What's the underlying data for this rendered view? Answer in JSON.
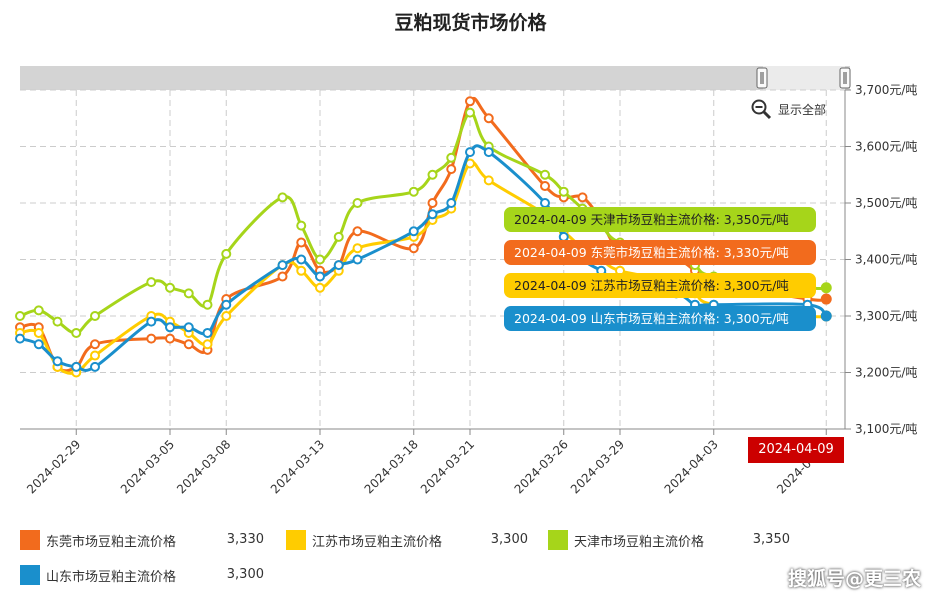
{
  "title": "豆粕现货市场价格",
  "show_all_label": "显示全部",
  "end_date_badge": "2024-04-09",
  "watermark": "搜狐号@更三农",
  "colors": {
    "dongguan": "#f26b1d",
    "jiangsu": "#ffcc00",
    "tianjin": "#a6d51a",
    "shandong": "#1a8fcc",
    "axis": "#888888",
    "grid": "#cccccc",
    "badge": "#cc0000"
  },
  "tooltips": [
    {
      "text": "2024-04-09 天津市场豆粕主流价格: 3,350元/吨",
      "color": "#a6d51a",
      "text_color": "#222222"
    },
    {
      "text": "2024-04-09 东莞市场豆粕主流价格: 3,330元/吨",
      "color": "#f26b1d",
      "text_color": "#ffffff"
    },
    {
      "text": "2024-04-09 江苏市场豆粕主流价格: 3,300元/吨",
      "color": "#ffcc00",
      "text_color": "#222222"
    },
    {
      "text": "2024-04-09 山东市场豆粕主流价格: 3,300元/吨",
      "color": "#1a8fcc",
      "text_color": "#ffffff"
    }
  ],
  "legend": [
    {
      "name": "东莞市场豆粕主流价格",
      "value": "3,330",
      "color": "#f26b1d"
    },
    {
      "name": "江苏市场豆粕主流价格",
      "value": "3,300",
      "color": "#ffcc00"
    },
    {
      "name": "天津市场豆粕主流价格",
      "value": "3,350",
      "color": "#a6d51a"
    },
    {
      "name": "山东市场豆粕主流价格",
      "value": "3,300",
      "color": "#1a8fcc"
    }
  ],
  "chart_data": {
    "type": "line",
    "title": "豆粕现货市场价格",
    "x_tick_labels": [
      "2024-02-29",
      "2024-03-05",
      "2024-03-08",
      "2024-03-13",
      "2024-03-18",
      "2024-03-21",
      "2024-03-26",
      "2024-03-29",
      "2024-04-03",
      "2024-04-09"
    ],
    "y_tick_labels": [
      "3,700元/吨",
      "3,600元/吨",
      "3,500元/吨",
      "3,400元/吨",
      "3,300元/吨",
      "3,200元/吨",
      "3,100元/吨"
    ],
    "ylim": [
      3100,
      3700
    ],
    "y_unit": "元/吨",
    "grid": true,
    "legend_position": "bottom",
    "x": [
      "2024-02-26",
      "2024-02-27",
      "2024-02-28",
      "2024-02-29",
      "2024-03-01",
      "2024-03-04",
      "2024-03-05",
      "2024-03-06",
      "2024-03-07",
      "2024-03-08",
      "2024-03-11",
      "2024-03-12",
      "2024-03-13",
      "2024-03-14",
      "2024-03-15",
      "2024-03-18",
      "2024-03-19",
      "2024-03-20",
      "2024-03-21",
      "2024-03-22",
      "2024-03-25",
      "2024-03-26",
      "2024-03-27",
      "2024-03-28",
      "2024-03-29",
      "2024-04-01",
      "2024-04-02",
      "2024-04-03",
      "2024-04-08",
      "2024-04-09"
    ],
    "series": [
      {
        "name": "东莞市场豆粕主流价格",
        "key": "dongguan",
        "values": [
          3280,
          3280,
          3210,
          3210,
          3250,
          3260,
          3260,
          3250,
          3240,
          3330,
          3370,
          3430,
          3380,
          3390,
          3450,
          3420,
          3500,
          3560,
          3680,
          3650,
          3530,
          3510,
          3510,
          3470,
          3420,
          3400,
          3380,
          3360,
          3330,
          3330
        ]
      },
      {
        "name": "江苏市场豆粕主流价格",
        "key": "jiangsu",
        "values": [
          3270,
          3270,
          3210,
          3200,
          3230,
          3300,
          3290,
          3270,
          3250,
          3300,
          3390,
          3380,
          3350,
          3380,
          3420,
          3440,
          3470,
          3490,
          3570,
          3540,
          3480,
          3450,
          3420,
          3400,
          3380,
          3360,
          3340,
          3320,
          3300,
          3300
        ]
      },
      {
        "name": "天津市场豆粕主流价格",
        "key": "tianjin",
        "values": [
          3300,
          3310,
          3290,
          3270,
          3300,
          3360,
          3350,
          3340,
          3320,
          3410,
          3510,
          3460,
          3400,
          3440,
          3500,
          3520,
          3550,
          3580,
          3660,
          3600,
          3550,
          3520,
          3490,
          3460,
          3430,
          3410,
          3390,
          3370,
          3350,
          3350
        ]
      },
      {
        "name": "山东市场豆粕主流价格",
        "key": "shandong",
        "values": [
          3260,
          3250,
          3220,
          3210,
          3210,
          3290,
          3280,
          3280,
          3270,
          3320,
          3390,
          3400,
          3370,
          3390,
          3400,
          3450,
          3480,
          3500,
          3590,
          3590,
          3500,
          3440,
          3400,
          3380,
          3360,
          3340,
          3320,
          3320,
          3320,
          3300
        ]
      }
    ]
  }
}
